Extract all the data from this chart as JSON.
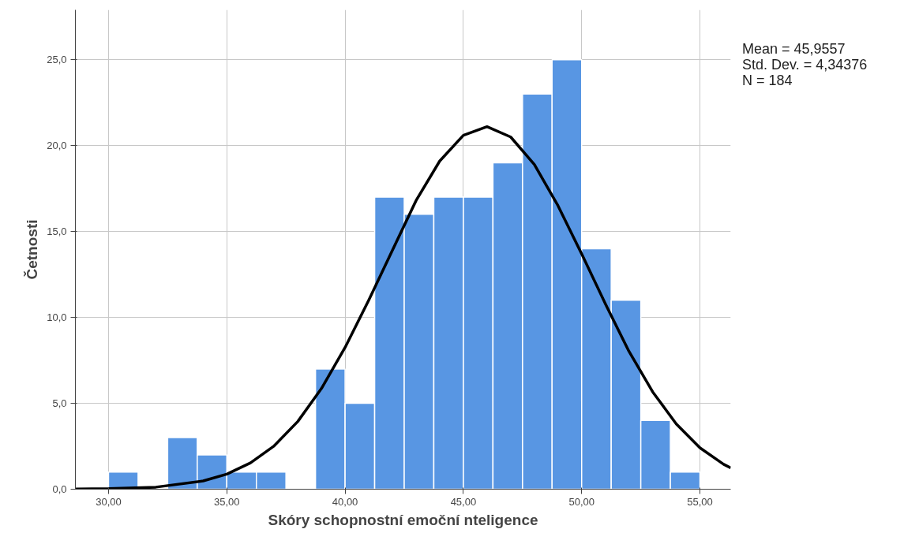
{
  "chart_data": {
    "type": "histogram",
    "xlabel": "Skóry schopnostní emoční nteligence",
    "ylabel": "Četnosti",
    "bins": [
      30,
      31.25,
      32.5,
      33.75,
      35,
      36.25,
      37.5,
      38.75,
      40,
      41.25,
      42.5,
      43.75,
      45,
      46.25,
      47.5,
      48.75,
      50,
      51.25,
      52.5,
      53.75,
      55
    ],
    "values": [
      1,
      0,
      3,
      2,
      1,
      1,
      0,
      7,
      5,
      17,
      16,
      17,
      17,
      19,
      23,
      25,
      14,
      11,
      4,
      1
    ],
    "color": "#5896e3",
    "series": [
      {
        "type": "line",
        "color": "#000000",
        "x": [
          28.6,
          30,
          32,
          34,
          35,
          36,
          37,
          38,
          39,
          40,
          41,
          42,
          43,
          44,
          45,
          46,
          47,
          48,
          49,
          50,
          51,
          52,
          53,
          54,
          55,
          56,
          56.3
        ],
        "values": [
          0.01,
          0.03,
          0.12,
          0.48,
          0.88,
          1.53,
          2.52,
          3.94,
          5.86,
          8.25,
          11.0,
          13.9,
          16.8,
          19.1,
          20.6,
          21.1,
          20.5,
          18.9,
          16.5,
          13.7,
          10.8,
          8.02,
          5.67,
          3.8,
          2.41,
          1.45,
          1.24
        ]
      }
    ],
    "xlim": [
      28.6,
      56.3
    ],
    "ylim": [
      0,
      27.9
    ],
    "xticks": [
      {
        "value": 30,
        "label": "30,00"
      },
      {
        "value": 35,
        "label": "35,00"
      },
      {
        "value": 40,
        "label": "40,00"
      },
      {
        "value": 45,
        "label": "45,00"
      },
      {
        "value": 50,
        "label": "50,00"
      },
      {
        "value": 55,
        "label": "55,00"
      }
    ],
    "yticks": [
      {
        "value": 0,
        "label": "0,0"
      },
      {
        "value": 5,
        "label": "5,0"
      },
      {
        "value": 10,
        "label": "10,0"
      },
      {
        "value": 15,
        "label": "15,0"
      },
      {
        "value": 20,
        "label": "20,0"
      },
      {
        "value": 25,
        "label": "25,0"
      }
    ],
    "grid": true,
    "marker": "none",
    "line_style": "solid",
    "annotations": [
      "Mean = 45,9557",
      "Std. Dev. = 4,34376",
      "N = 184"
    ]
  }
}
